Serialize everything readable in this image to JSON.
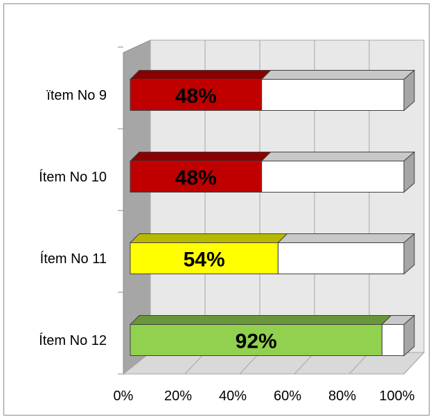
{
  "chart_data": {
    "type": "bar",
    "orientation": "horizontal",
    "stacked_percent": true,
    "three_d": true,
    "categories": [
      "ïtem No 9",
      "Ítem No 10",
      "Ítem No 11",
      "Ítem No 12"
    ],
    "series": [
      {
        "values": [
          48,
          48,
          54,
          92
        ]
      },
      {
        "values": [
          52,
          52,
          46,
          8
        ]
      }
    ],
    "data_labels": [
      "48%",
      "48%",
      "54%",
      "92%"
    ],
    "bar_colors": [
      "#c00000",
      "#c00000",
      "#ffff00",
      "#92d050"
    ],
    "remainder_color": "#ffffff",
    "x_ticks": [
      "0%",
      "20%",
      "40%",
      "60%",
      "80%",
      "100%"
    ],
    "xlim": [
      0,
      100
    ],
    "grid": true,
    "legend": "none",
    "title": "",
    "xlabel": "",
    "ylabel": ""
  }
}
